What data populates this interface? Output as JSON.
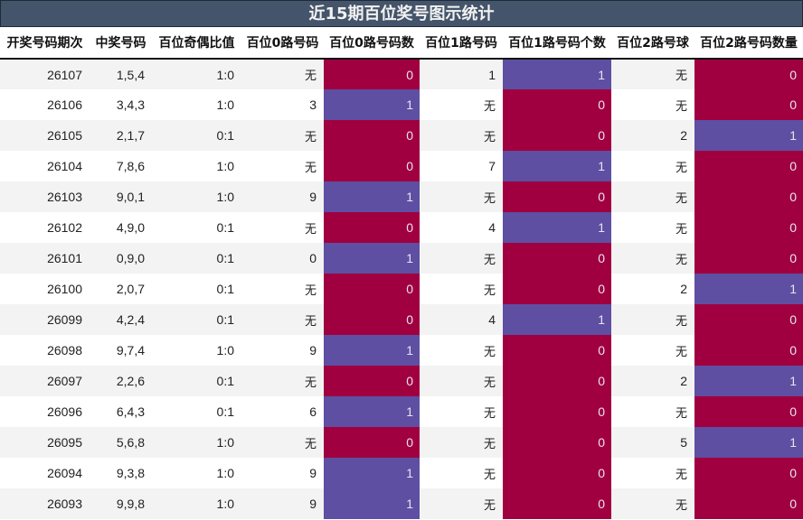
{
  "title": "近15期百位奖号图示统计",
  "colors": {
    "title_bg": "#44546a",
    "count_zero": "#a00040",
    "count_one": "#5e4fa2",
    "row_alt": "#f3f3f3"
  },
  "headers": [
    "开奖号码期次",
    "中奖号码",
    "百位奇偶比值",
    "百位0路号码",
    "百位0路号码数",
    "百位1路号码",
    "百位1路号码个数",
    "百位2路号球",
    "百位2路号码数量"
  ],
  "rows": [
    {
      "issue": "26107",
      "numbers": "1,5,4",
      "odd_even": "1:0",
      "r0": "无",
      "r0c": "0",
      "r1": "1",
      "r1c": "1",
      "r2": "无",
      "r2c": "0"
    },
    {
      "issue": "26106",
      "numbers": "3,4,3",
      "odd_even": "1:0",
      "r0": "3",
      "r0c": "1",
      "r1": "无",
      "r1c": "0",
      "r2": "无",
      "r2c": "0"
    },
    {
      "issue": "26105",
      "numbers": "2,1,7",
      "odd_even": "0:1",
      "r0": "无",
      "r0c": "0",
      "r1": "无",
      "r1c": "0",
      "r2": "2",
      "r2c": "1"
    },
    {
      "issue": "26104",
      "numbers": "7,8,6",
      "odd_even": "1:0",
      "r0": "无",
      "r0c": "0",
      "r1": "7",
      "r1c": "1",
      "r2": "无",
      "r2c": "0"
    },
    {
      "issue": "26103",
      "numbers": "9,0,1",
      "odd_even": "1:0",
      "r0": "9",
      "r0c": "1",
      "r1": "无",
      "r1c": "0",
      "r2": "无",
      "r2c": "0"
    },
    {
      "issue": "26102",
      "numbers": "4,9,0",
      "odd_even": "0:1",
      "r0": "无",
      "r0c": "0",
      "r1": "4",
      "r1c": "1",
      "r2": "无",
      "r2c": "0"
    },
    {
      "issue": "26101",
      "numbers": "0,9,0",
      "odd_even": "0:1",
      "r0": "0",
      "r0c": "1",
      "r1": "无",
      "r1c": "0",
      "r2": "无",
      "r2c": "0"
    },
    {
      "issue": "26100",
      "numbers": "2,0,7",
      "odd_even": "0:1",
      "r0": "无",
      "r0c": "0",
      "r1": "无",
      "r1c": "0",
      "r2": "2",
      "r2c": "1"
    },
    {
      "issue": "26099",
      "numbers": "4,2,4",
      "odd_even": "0:1",
      "r0": "无",
      "r0c": "0",
      "r1": "4",
      "r1c": "1",
      "r2": "无",
      "r2c": "0"
    },
    {
      "issue": "26098",
      "numbers": "9,7,4",
      "odd_even": "1:0",
      "r0": "9",
      "r0c": "1",
      "r1": "无",
      "r1c": "0",
      "r2": "无",
      "r2c": "0"
    },
    {
      "issue": "26097",
      "numbers": "2,2,6",
      "odd_even": "0:1",
      "r0": "无",
      "r0c": "0",
      "r1": "无",
      "r1c": "0",
      "r2": "2",
      "r2c": "1"
    },
    {
      "issue": "26096",
      "numbers": "6,4,3",
      "odd_even": "0:1",
      "r0": "6",
      "r0c": "1",
      "r1": "无",
      "r1c": "0",
      "r2": "无",
      "r2c": "0"
    },
    {
      "issue": "26095",
      "numbers": "5,6,8",
      "odd_even": "1:0",
      "r0": "无",
      "r0c": "0",
      "r1": "无",
      "r1c": "0",
      "r2": "5",
      "r2c": "1"
    },
    {
      "issue": "26094",
      "numbers": "9,3,8",
      "odd_even": "1:0",
      "r0": "9",
      "r0c": "1",
      "r1": "无",
      "r1c": "0",
      "r2": "无",
      "r2c": "0"
    },
    {
      "issue": "26093",
      "numbers": "9,9,8",
      "odd_even": "1:0",
      "r0": "9",
      "r0c": "1",
      "r1": "无",
      "r1c": "0",
      "r2": "无",
      "r2c": "0"
    }
  ],
  "chart_data": {
    "type": "table",
    "title": "近15期百位奖号图示统计",
    "columns": [
      "开奖号码期次",
      "中奖号码",
      "百位奇偶比值",
      "百位0路号码",
      "百位0路号码数",
      "百位1路号码",
      "百位1路号码个数",
      "百位2路号球",
      "百位2路号码数量"
    ],
    "rows": [
      [
        "26107",
        "1,5,4",
        "1:0",
        "无",
        0,
        "1",
        1,
        "无",
        0
      ],
      [
        "26106",
        "3,4,3",
        "1:0",
        "3",
        1,
        "无",
        0,
        "无",
        0
      ],
      [
        "26105",
        "2,1,7",
        "0:1",
        "无",
        0,
        "无",
        0,
        "2",
        1
      ],
      [
        "26104",
        "7,8,6",
        "1:0",
        "无",
        0,
        "7",
        1,
        "无",
        0
      ],
      [
        "26103",
        "9,0,1",
        "1:0",
        "9",
        1,
        "无",
        0,
        "无",
        0
      ],
      [
        "26102",
        "4,9,0",
        "0:1",
        "无",
        0,
        "4",
        1,
        "无",
        0
      ],
      [
        "26101",
        "0,9,0",
        "0:1",
        "0",
        1,
        "无",
        0,
        "无",
        0
      ],
      [
        "26100",
        "2,0,7",
        "0:1",
        "无",
        0,
        "无",
        0,
        "2",
        1
      ],
      [
        "26099",
        "4,2,4",
        "0:1",
        "无",
        0,
        "4",
        1,
        "无",
        0
      ],
      [
        "26098",
        "9,7,4",
        "1:0",
        "9",
        1,
        "无",
        0,
        "无",
        0
      ],
      [
        "26097",
        "2,2,6",
        "0:1",
        "无",
        0,
        "无",
        0,
        "2",
        1
      ],
      [
        "26096",
        "6,4,3",
        "0:1",
        "6",
        1,
        "无",
        0,
        "无",
        0
      ],
      [
        "26095",
        "5,6,8",
        "1:0",
        "无",
        0,
        "无",
        0,
        "5",
        1
      ],
      [
        "26094",
        "9,3,8",
        "1:0",
        "9",
        1,
        "无",
        0,
        "无",
        0
      ],
      [
        "26093",
        "9,9,8",
        "1:0",
        "9",
        1,
        "无",
        0,
        "无",
        0
      ]
    ],
    "color_scale": {
      "0": "#a00040",
      "1": "#5e4fa2"
    }
  }
}
